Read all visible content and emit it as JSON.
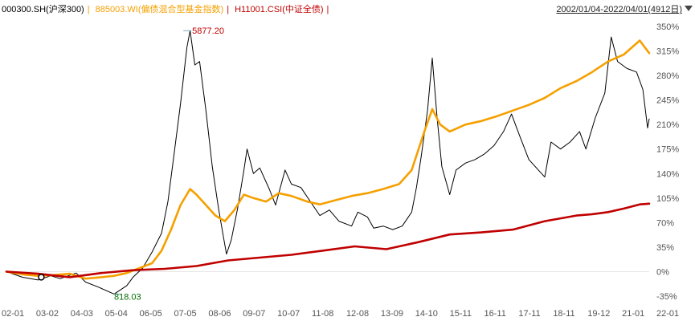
{
  "legend": {
    "items": [
      {
        "label": "000300.SH(沪深300)",
        "color": "#000000"
      },
      {
        "label": "885003.WI(偏债混合型基金指数)",
        "color": "#f5a000"
      },
      {
        "label": "H11001.CSI(中证全债)",
        "color": "#c00000"
      }
    ]
  },
  "date_range": {
    "label": "2002/01/04-2022/04/01(4912日)"
  },
  "chart_data": {
    "type": "line",
    "x_ticks": [
      "02-01",
      "03-02",
      "04-03",
      "05-04",
      "06-05",
      "07-05",
      "08-06",
      "09-07",
      "10-07",
      "11-08",
      "12-08",
      "13-09",
      "14-10",
      "15-11",
      "16-11",
      "17-11",
      "18-11",
      "19-12",
      "21-01",
      "22-01"
    ],
    "y_ticks": [
      "350%",
      "315%",
      "280%",
      "245%",
      "210%",
      "175%",
      "140%",
      "105%",
      "70%",
      "35%",
      "0%",
      "-35%"
    ],
    "ylim": [
      -35,
      350
    ],
    "annotations": [
      {
        "label": "5877.20",
        "x": 2007.79,
        "y": 344,
        "color": "#c00000",
        "side": "right"
      },
      {
        "label": "818.03",
        "x": 2005.45,
        "y": -32,
        "color": "#007000",
        "side": "left"
      }
    ],
    "series": [
      {
        "name": "000300.SH(沪深300)",
        "color": "#000000",
        "points": [
          [
            2002.0,
            0
          ],
          [
            2002.5,
            -8
          ],
          [
            2003.0,
            -12
          ],
          [
            2003.4,
            -6
          ],
          [
            2003.7,
            -10
          ],
          [
            2004.2,
            -2
          ],
          [
            2004.5,
            -15
          ],
          [
            2004.9,
            -22
          ],
          [
            2005.4,
            -32
          ],
          [
            2005.8,
            -20
          ],
          [
            2006.0,
            -8
          ],
          [
            2006.3,
            5
          ],
          [
            2006.6,
            28
          ],
          [
            2006.9,
            55
          ],
          [
            2007.1,
            100
          ],
          [
            2007.3,
            170
          ],
          [
            2007.5,
            240
          ],
          [
            2007.7,
            320
          ],
          [
            2007.8,
            344
          ],
          [
            2007.95,
            295
          ],
          [
            2008.1,
            300
          ],
          [
            2008.3,
            230
          ],
          [
            2008.5,
            150
          ],
          [
            2008.7,
            90
          ],
          [
            2008.85,
            50
          ],
          [
            2008.95,
            25
          ],
          [
            2009.1,
            45
          ],
          [
            2009.3,
            90
          ],
          [
            2009.5,
            145
          ],
          [
            2009.6,
            175
          ],
          [
            2009.8,
            140
          ],
          [
            2010.0,
            148
          ],
          [
            2010.3,
            118
          ],
          [
            2010.5,
            95
          ],
          [
            2010.8,
            145
          ],
          [
            2011.0,
            125
          ],
          [
            2011.3,
            120
          ],
          [
            2011.6,
            100
          ],
          [
            2011.9,
            80
          ],
          [
            2012.2,
            88
          ],
          [
            2012.5,
            72
          ],
          [
            2012.9,
            65
          ],
          [
            2013.1,
            85
          ],
          [
            2013.4,
            78
          ],
          [
            2013.6,
            62
          ],
          [
            2013.9,
            65
          ],
          [
            2014.2,
            60
          ],
          [
            2014.5,
            65
          ],
          [
            2014.8,
            85
          ],
          [
            2014.95,
            120
          ],
          [
            2015.1,
            165
          ],
          [
            2015.3,
            230
          ],
          [
            2015.45,
            305
          ],
          [
            2015.6,
            220
          ],
          [
            2015.75,
            150
          ],
          [
            2016.0,
            110
          ],
          [
            2016.2,
            145
          ],
          [
            2016.5,
            155
          ],
          [
            2016.8,
            160
          ],
          [
            2017.1,
            168
          ],
          [
            2017.4,
            180
          ],
          [
            2017.7,
            200
          ],
          [
            2017.95,
            225
          ],
          [
            2018.2,
            195
          ],
          [
            2018.5,
            160
          ],
          [
            2018.8,
            145
          ],
          [
            2019.0,
            135
          ],
          [
            2019.2,
            185
          ],
          [
            2019.5,
            175
          ],
          [
            2019.8,
            185
          ],
          [
            2020.1,
            200
          ],
          [
            2020.3,
            175
          ],
          [
            2020.6,
            220
          ],
          [
            2020.9,
            255
          ],
          [
            2021.1,
            335
          ],
          [
            2021.3,
            300
          ],
          [
            2021.6,
            290
          ],
          [
            2021.9,
            285
          ],
          [
            2022.1,
            260
          ],
          [
            2022.25,
            205
          ],
          [
            2022.3,
            218
          ]
        ]
      },
      {
        "name": "885003.WI(偏债混合型基金指数)",
        "color": "#f5a000",
        "points": [
          [
            2002.0,
            0
          ],
          [
            2002.5,
            -4
          ],
          [
            2003.0,
            -6
          ],
          [
            2003.5,
            -5
          ],
          [
            2004.0,
            -3
          ],
          [
            2004.5,
            -10
          ],
          [
            2005.0,
            -8
          ],
          [
            2005.4,
            -6
          ],
          [
            2005.8,
            -2
          ],
          [
            2006.2,
            5
          ],
          [
            2006.6,
            12
          ],
          [
            2006.9,
            30
          ],
          [
            2007.2,
            60
          ],
          [
            2007.5,
            95
          ],
          [
            2007.8,
            118
          ],
          [
            2008.0,
            110
          ],
          [
            2008.3,
            95
          ],
          [
            2008.6,
            80
          ],
          [
            2008.9,
            72
          ],
          [
            2009.2,
            88
          ],
          [
            2009.5,
            110
          ],
          [
            2009.8,
            105
          ],
          [
            2010.2,
            100
          ],
          [
            2010.6,
            112
          ],
          [
            2011.0,
            108
          ],
          [
            2011.5,
            100
          ],
          [
            2011.9,
            96
          ],
          [
            2012.4,
            102
          ],
          [
            2012.9,
            108
          ],
          [
            2013.4,
            112
          ],
          [
            2013.9,
            118
          ],
          [
            2014.4,
            125
          ],
          [
            2014.8,
            145
          ],
          [
            2015.2,
            200
          ],
          [
            2015.45,
            232
          ],
          [
            2015.7,
            210
          ],
          [
            2016.0,
            200
          ],
          [
            2016.5,
            210
          ],
          [
            2017.0,
            215
          ],
          [
            2017.5,
            222
          ],
          [
            2018.0,
            230
          ],
          [
            2018.5,
            238
          ],
          [
            2019.0,
            248
          ],
          [
            2019.5,
            262
          ],
          [
            2020.0,
            272
          ],
          [
            2020.5,
            285
          ],
          [
            2021.0,
            300
          ],
          [
            2021.5,
            310
          ],
          [
            2022.0,
            330
          ],
          [
            2022.3,
            312
          ]
        ]
      },
      {
        "name": "H11001.CSI(中证全债)",
        "color": "#c00000",
        "points": [
          [
            2002.0,
            0
          ],
          [
            2003.0,
            -3
          ],
          [
            2004.0,
            -8
          ],
          [
            2005.0,
            -2
          ],
          [
            2006.0,
            2
          ],
          [
            2007.0,
            4
          ],
          [
            2008.0,
            8
          ],
          [
            2009.0,
            16
          ],
          [
            2010.0,
            20
          ],
          [
            2011.0,
            24
          ],
          [
            2012.0,
            30
          ],
          [
            2013.0,
            36
          ],
          [
            2014.0,
            32
          ],
          [
            2015.0,
            42
          ],
          [
            2016.0,
            53
          ],
          [
            2017.0,
            56
          ],
          [
            2018.0,
            60
          ],
          [
            2019.0,
            72
          ],
          [
            2020.0,
            80
          ],
          [
            2020.5,
            82
          ],
          [
            2021.0,
            85
          ],
          [
            2021.5,
            90
          ],
          [
            2022.0,
            96
          ],
          [
            2022.3,
            97
          ]
        ]
      }
    ]
  }
}
